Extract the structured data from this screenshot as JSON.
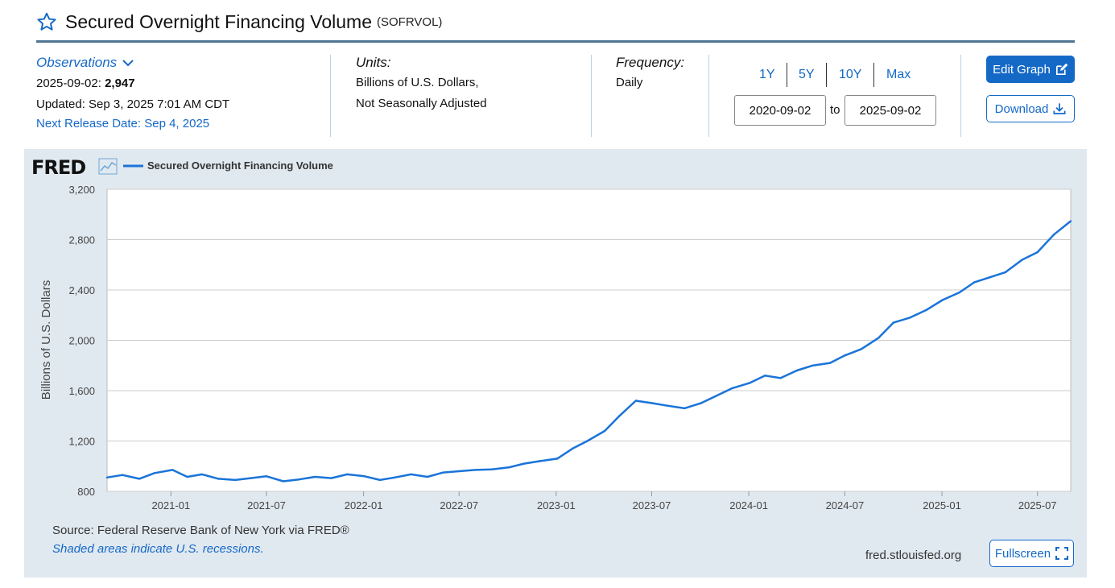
{
  "header": {
    "title": "Secured Overnight Financing Volume",
    "series_id": "(SOFRVOL)"
  },
  "meta": {
    "observations_label": "Observations",
    "obs_date": "2025-09-02:",
    "obs_value": "2,947",
    "updated": "Updated: Sep 3, 2025 7:01 AM CDT",
    "next_release": "Next Release Date: Sep 4, 2025",
    "units_label": "Units:",
    "units_line1": "Billions of U.S. Dollars,",
    "units_line2": "Not Seasonally Adjusted",
    "frequency_label": "Frequency:",
    "frequency_value": "Daily"
  },
  "range": {
    "buttons": [
      "1Y",
      "5Y",
      "10Y",
      "Max"
    ],
    "start": "2020-09-02",
    "to": "to",
    "end": "2025-09-02"
  },
  "actions": {
    "edit_graph": "Edit Graph",
    "download": "Download",
    "fullscreen": "Fullscreen"
  },
  "footer": {
    "source": "Source: Federal Reserve Bank of New York via FRED®",
    "recession_note": "Shaded areas indicate U.S. recessions.",
    "site": "fred.stlouisfed.org"
  },
  "colors": {
    "accent": "#1469c7",
    "line": "#1a74d8",
    "panel_bg": "#e1e9f0"
  },
  "chart_data": {
    "type": "line",
    "logo": "FRED",
    "title": "",
    "xlabel": "",
    "ylabel": "Billions of U.S. Dollars",
    "ylim": [
      800,
      3200
    ],
    "yticks": [
      800,
      1200,
      1600,
      2000,
      2400,
      2800,
      3200
    ],
    "ytick_labels": [
      "800",
      "1,200",
      "1,600",
      "2,000",
      "2,400",
      "2,800",
      "3,200"
    ],
    "xlim": [
      "2020-09-02",
      "2025-09-02"
    ],
    "xticks": [
      "2021-01",
      "2021-07",
      "2022-01",
      "2022-07",
      "2023-01",
      "2023-07",
      "2024-01",
      "2024-07",
      "2025-01",
      "2025-07"
    ],
    "grid": true,
    "legend_position": "top-left",
    "series": [
      {
        "name": "Secured Overnight Financing Volume",
        "color": "#1a74d8",
        "x": [
          "2020-09-02",
          "2020-10-01",
          "2020-11-02",
          "2020-12-01",
          "2021-01-04",
          "2021-02-01",
          "2021-03-01",
          "2021-04-01",
          "2021-05-03",
          "2021-06-01",
          "2021-07-01",
          "2021-08-02",
          "2021-09-01",
          "2021-10-01",
          "2021-11-01",
          "2021-12-01",
          "2022-01-03",
          "2022-02-01",
          "2022-03-01",
          "2022-04-01",
          "2022-05-02",
          "2022-06-01",
          "2022-07-01",
          "2022-08-01",
          "2022-09-01",
          "2022-10-03",
          "2022-11-01",
          "2022-12-01",
          "2023-01-03",
          "2023-02-01",
          "2023-03-01",
          "2023-04-03",
          "2023-05-01",
          "2023-06-01",
          "2023-07-03",
          "2023-08-01",
          "2023-09-01",
          "2023-10-02",
          "2023-11-01",
          "2023-12-01",
          "2024-01-02",
          "2024-02-01",
          "2024-03-01",
          "2024-04-01",
          "2024-05-01",
          "2024-06-03",
          "2024-07-01",
          "2024-08-01",
          "2024-09-03",
          "2024-10-01",
          "2024-11-01",
          "2024-12-02",
          "2025-01-02",
          "2025-02-03",
          "2025-03-03",
          "2025-04-01",
          "2025-05-01",
          "2025-06-02",
          "2025-07-01",
          "2025-08-01",
          "2025-09-02"
        ],
        "values": [
          910,
          930,
          900,
          945,
          970,
          915,
          935,
          900,
          890,
          905,
          920,
          880,
          895,
          915,
          905,
          935,
          920,
          890,
          910,
          935,
          915,
          950,
          960,
          970,
          975,
          990,
          1020,
          1040,
          1060,
          1140,
          1200,
          1280,
          1400,
          1520,
          1500,
          1480,
          1460,
          1500,
          1560,
          1620,
          1660,
          1720,
          1700,
          1760,
          1800,
          1820,
          1880,
          1930,
          2020,
          2140,
          2180,
          2240,
          2320,
          2380,
          2460,
          2500,
          2540,
          2640,
          2700,
          2840,
          2947
        ]
      }
    ]
  }
}
